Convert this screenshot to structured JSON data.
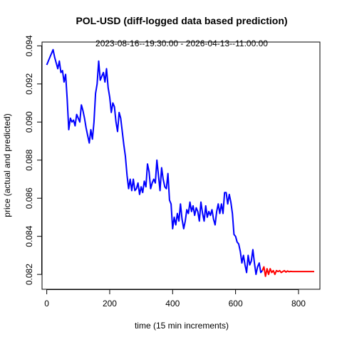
{
  "chart_data": {
    "type": "line",
    "title": "POL-USD (diff-logged data based prediction)",
    "subtitle": "2023-08-16--19:30:00  -  2026-04-13--11:00:00",
    "xlabel": "time (15 min increments)",
    "ylabel": "price (actual and predicted)",
    "xlim": [
      -15,
      868
    ],
    "ylim": [
      0.08122,
      0.0942
    ],
    "xticks": [
      0,
      200,
      400,
      600,
      800
    ],
    "yticks": [
      0.082,
      0.084,
      0.086,
      0.088,
      0.09,
      0.092,
      0.094
    ],
    "ytick_labels": [
      "0.082",
      "0.084",
      "0.086",
      "0.088",
      "0.090",
      "0.092",
      "0.094"
    ],
    "grid": false,
    "series": [
      {
        "color": "#0000ff",
        "x": [
          0,
          5,
          10,
          15,
          20,
          25,
          30,
          35,
          40,
          45,
          50,
          55,
          60,
          65,
          70,
          75,
          80,
          85,
          90,
          95,
          100,
          105,
          110,
          115,
          120,
          125,
          130,
          135,
          140,
          145,
          150,
          155,
          160,
          165,
          170,
          175,
          180,
          185,
          190,
          195,
          200,
          205,
          210,
          215,
          220,
          225,
          230,
          235,
          240,
          245,
          250,
          255,
          260,
          265,
          270,
          275,
          280,
          285,
          290,
          295,
          300,
          305,
          310,
          315,
          320,
          325,
          330,
          335,
          340,
          345,
          350,
          355,
          360,
          365,
          370,
          375,
          380,
          385,
          390,
          395,
          400,
          405,
          410,
          415,
          420,
          425,
          430,
          435,
          440,
          445,
          450,
          455,
          460,
          465,
          470,
          475,
          480,
          485,
          490,
          495,
          500,
          505,
          510,
          515,
          520,
          525,
          530,
          535,
          540,
          545,
          550,
          555,
          560,
          565,
          570,
          575,
          580,
          585,
          590,
          595,
          600,
          605,
          610,
          615,
          620,
          625,
          630,
          635,
          640,
          645,
          650,
          655,
          660,
          665,
          670,
          675,
          680,
          685
        ],
        "values": [
          0.093,
          0.0932,
          0.0934,
          0.0936,
          0.0938,
          0.0934,
          0.0931,
          0.0928,
          0.0932,
          0.0926,
          0.0927,
          0.0921,
          0.0925,
          0.0912,
          0.0896,
          0.0902,
          0.09,
          0.0901,
          0.0898,
          0.0904,
          0.0902,
          0.09,
          0.0909,
          0.0906,
          0.0902,
          0.0897,
          0.0893,
          0.0889,
          0.0896,
          0.0891,
          0.09,
          0.0915,
          0.092,
          0.0932,
          0.0922,
          0.0924,
          0.0926,
          0.0921,
          0.0928,
          0.0918,
          0.0913,
          0.0905,
          0.091,
          0.0908,
          0.09,
          0.0895,
          0.0905,
          0.0902,
          0.0895,
          0.0888,
          0.0882,
          0.0872,
          0.0865,
          0.087,
          0.0864,
          0.087,
          0.0864,
          0.0865,
          0.0868,
          0.0862,
          0.0866,
          0.0863,
          0.0869,
          0.0866,
          0.0878,
          0.0874,
          0.0865,
          0.0868,
          0.087,
          0.0868,
          0.088,
          0.0872,
          0.0864,
          0.0876,
          0.087,
          0.0866,
          0.0865,
          0.0873,
          0.0859,
          0.0857,
          0.0844,
          0.085,
          0.0846,
          0.0852,
          0.0848,
          0.0857,
          0.0849,
          0.0844,
          0.0848,
          0.0854,
          0.0852,
          0.0858,
          0.0853,
          0.0856,
          0.0851,
          0.0855,
          0.0853,
          0.0848,
          0.0858,
          0.0852,
          0.0848,
          0.0856,
          0.085,
          0.0853,
          0.0851,
          0.0854,
          0.0849,
          0.0846,
          0.0853,
          0.0857,
          0.0852,
          0.0857,
          0.0852,
          0.0863,
          0.0863,
          0.0857,
          0.0862,
          0.0858,
          0.0852,
          0.0841,
          0.084,
          0.0837,
          0.0836,
          0.0832,
          0.0826,
          0.083,
          0.0825,
          0.0821,
          0.083,
          0.0825,
          0.0827,
          0.0833,
          0.0826,
          0.082,
          0.0824,
          0.0826,
          0.0821,
          0.0822
        ]
      },
      {
        "color": "#ff0000",
        "x": [
          685,
          690,
          695,
          700,
          705,
          710,
          715,
          720,
          725,
          730,
          735,
          740,
          745,
          750,
          755,
          760,
          765,
          770,
          775,
          780,
          785,
          790,
          795,
          800,
          805,
          810,
          815,
          820,
          825,
          830,
          835,
          840,
          845,
          850
        ],
        "values": [
          0.0822,
          0.0824,
          0.0819,
          0.0823,
          0.082,
          0.0823,
          0.0821,
          0.0822,
          0.082,
          0.0822,
          0.08215,
          0.0822,
          0.0821,
          0.08215,
          0.0822,
          0.08212,
          0.08218,
          0.08214,
          0.08216,
          0.08215,
          0.08215,
          0.08215,
          0.08215,
          0.08215,
          0.08215,
          0.08215,
          0.08215,
          0.08215,
          0.08215,
          0.08215,
          0.08215,
          0.08215,
          0.08215,
          0.08215
        ]
      }
    ]
  }
}
